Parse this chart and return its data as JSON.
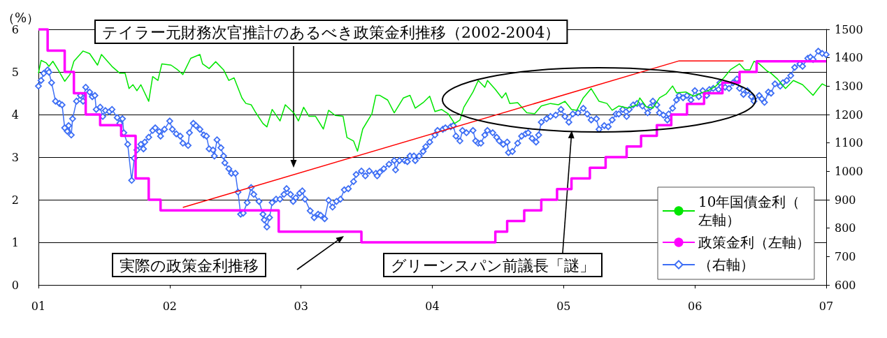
{
  "chart_data": {
    "type": "line",
    "ylabel": "（%）",
    "xlim": [
      2001,
      2007
    ],
    "xticks": [
      {
        "value": 2001,
        "label": "01"
      },
      {
        "value": 2002,
        "label": "02"
      },
      {
        "value": 2003,
        "label": "03"
      },
      {
        "value": 2004,
        "label": "04"
      },
      {
        "value": 2005,
        "label": "05"
      },
      {
        "value": 2006,
        "label": "06"
      },
      {
        "value": 2007,
        "label": "07"
      }
    ],
    "ylim": [
      0,
      6
    ],
    "yticks": [
      0,
      1,
      2,
      3,
      4,
      5,
      6
    ],
    "y2lim": [
      600,
      1500
    ],
    "y2ticks": [
      600,
      700,
      800,
      900,
      1000,
      1100,
      1200,
      1300,
      1400,
      1500
    ],
    "grid": "y",
    "legend": "bottom right",
    "annotations": [
      "テイラー元財務次官推計のあるべき政策金利推移（2002-2004）",
      "実際の政策金利推移",
      "グリーンスパン前議長「謎」"
    ],
    "series": [
      {
        "name": "10年国債金利（左軸）",
        "color": "#00e600",
        "marker": "none",
        "x": [
          2001.0,
          2001.02,
          2001.06,
          2001.08,
          2001.11,
          2001.15,
          2001.2,
          2001.24,
          2001.27,
          2001.34,
          2001.39,
          2001.45,
          2001.48,
          2001.56,
          2001.62,
          2001.66,
          2001.69,
          2001.72,
          2001.75,
          2001.78,
          2001.84,
          2001.87,
          2001.91,
          2001.94,
          2002.01,
          2002.06,
          2002.1,
          2002.16,
          2002.23,
          2002.25,
          2002.3,
          2002.35,
          2002.41,
          2002.45,
          2002.49,
          2002.55,
          2002.58,
          2002.62,
          2002.65,
          2002.71,
          2002.74,
          2002.78,
          2002.84,
          2002.88,
          2002.95,
          2002.98,
          2003.02,
          2003.06,
          2003.11,
          2003.17,
          2003.21,
          2003.26,
          2003.32,
          2003.35,
          2003.4,
          2003.43,
          2003.47,
          2003.54,
          2003.57,
          2003.6,
          2003.66,
          2003.71,
          2003.78,
          2003.83,
          2003.87,
          2003.93,
          2003.98,
          2004.02,
          2004.07,
          2004.12,
          2004.17,
          2004.21,
          2004.24,
          2004.31,
          2004.35,
          2004.4,
          2004.42,
          2004.48,
          2004.53,
          2004.56,
          2004.59,
          2004.65,
          2004.72,
          2004.78,
          2004.83,
          2004.9,
          2004.96,
          2005.01,
          2005.06,
          2005.1,
          2005.15,
          2005.21,
          2005.27,
          2005.33,
          2005.37,
          2005.42,
          2005.49,
          2005.56,
          2005.58,
          2005.63,
          2005.68,
          2005.73,
          2005.78,
          2005.83,
          2005.86,
          2005.93,
          2005.99,
          2006.05,
          2006.1,
          2006.16,
          2006.22,
          2006.27,
          2006.34,
          2006.38,
          2006.42,
          2006.45,
          2006.49,
          2006.55,
          2006.58,
          2006.63,
          2006.69,
          2006.75,
          2006.82,
          2006.9,
          2006.94,
          2006.97,
          2007.0
        ],
        "values": [
          4.97,
          5.27,
          5.21,
          5.13,
          5.25,
          5.05,
          4.78,
          4.94,
          5.25,
          5.49,
          5.43,
          5.16,
          5.41,
          5.13,
          4.97,
          4.97,
          4.61,
          4.7,
          4.56,
          4.7,
          4.31,
          4.89,
          4.8,
          5.19,
          5.16,
          5.05,
          4.94,
          5.32,
          5.41,
          5.19,
          5.08,
          5.24,
          5.05,
          4.8,
          4.86,
          4.39,
          4.26,
          4.23,
          4.07,
          3.79,
          3.71,
          4.12,
          3.85,
          4.23,
          4.02,
          3.85,
          4.17,
          3.96,
          3.96,
          3.66,
          4.1,
          3.98,
          3.96,
          3.46,
          3.38,
          3.14,
          3.66,
          4.02,
          4.45,
          4.45,
          4.34,
          4.04,
          4.39,
          4.45,
          4.15,
          4.28,
          4.43,
          4.07,
          4.12,
          4.02,
          3.79,
          3.87,
          4.17,
          4.53,
          4.8,
          4.64,
          4.8,
          4.59,
          4.39,
          4.51,
          4.26,
          4.28,
          4.04,
          4.02,
          4.2,
          4.26,
          4.23,
          4.31,
          4.12,
          4.1,
          4.39,
          4.61,
          4.31,
          4.26,
          4.1,
          4.2,
          4.15,
          4.23,
          4.39,
          4.18,
          4.15,
          4.39,
          4.48,
          4.67,
          4.51,
          4.53,
          4.43,
          4.51,
          4.56,
          4.67,
          4.86,
          5.05,
          5.19,
          5.05,
          5.05,
          5.25,
          5.19,
          5.02,
          4.97,
          4.83,
          4.61,
          4.8,
          4.7,
          4.45,
          4.61,
          4.72,
          4.67
        ]
      },
      {
        "name": "政策金利（左軸）",
        "type": "step",
        "color": "#ff00ff",
        "marker": "none",
        "x": [
          2001.0,
          2001.07,
          2001.2,
          2001.27,
          2001.36,
          2001.47,
          2001.63,
          2001.74,
          2001.84,
          2001.93,
          2002.83,
          2003.46,
          2004.48,
          2004.57,
          2004.7,
          2004.83,
          2004.95,
          2005.06,
          2005.2,
          2005.32,
          2005.48,
          2005.59,
          2005.71,
          2005.82,
          2005.94,
          2006.07,
          2006.21,
          2006.34,
          2006.47,
          2007.0
        ],
        "values": [
          6.0,
          5.5,
          5.0,
          4.5,
          4.0,
          3.75,
          3.5,
          2.5,
          2.0,
          1.75,
          1.25,
          1.0,
          1.25,
          1.5,
          1.75,
          2.0,
          2.25,
          2.5,
          2.75,
          3.0,
          3.25,
          3.5,
          3.75,
          4.0,
          4.25,
          4.5,
          4.75,
          5.0,
          5.25,
          5.25
        ]
      },
      {
        "name": "（右軸）",
        "axis": "y2",
        "color": "#3d6ef5",
        "marker": "diamond",
        "x": [
          2001.0,
          2001.02,
          2001.04,
          2001.07,
          2001.08,
          2001.1,
          2001.13,
          2001.16,
          2001.18,
          2001.2,
          2001.22,
          2001.23,
          2001.25,
          2001.26,
          2001.29,
          2001.32,
          2001.34,
          2001.36,
          2001.39,
          2001.41,
          2001.43,
          2001.44,
          2001.47,
          2001.49,
          2001.51,
          2001.54,
          2001.56,
          2001.6,
          2001.62,
          2001.64,
          2001.65,
          2001.68,
          2001.71,
          2001.73,
          2001.75,
          2001.78,
          2001.8,
          2001.81,
          2001.84,
          2001.87,
          2001.89,
          2001.92,
          2001.93,
          2001.96,
          2002.0,
          2002.02,
          2002.05,
          2002.08,
          2002.1,
          2002.14,
          2002.15,
          2002.18,
          2002.2,
          2002.23,
          2002.26,
          2002.28,
          2002.3,
          2002.33,
          2002.34,
          2002.36,
          2002.39,
          2002.41,
          2002.42,
          2002.45,
          2002.47,
          2002.5,
          2002.52,
          2002.54,
          2002.56,
          2002.59,
          2002.62,
          2002.64,
          2002.68,
          2002.71,
          2002.72,
          2002.74,
          2002.76,
          2002.78,
          2002.81,
          2002.84,
          2002.87,
          2002.89,
          2002.92,
          2002.94,
          2002.96,
          2002.99,
          2003.01,
          2003.03,
          2003.07,
          2003.1,
          2003.13,
          2003.15,
          2003.18,
          2003.21,
          2003.24,
          2003.27,
          2003.3,
          2003.33,
          2003.36,
          2003.4,
          2003.42,
          2003.46,
          2003.49,
          2003.52,
          2003.57,
          2003.58,
          2003.6,
          2003.63,
          2003.67,
          2003.71,
          2003.72,
          2003.75,
          2003.79,
          2003.81,
          2003.83,
          2003.86,
          2003.87,
          2003.9,
          2003.93,
          2003.95,
          2003.98,
          2004.02,
          2004.04,
          2004.08,
          2004.1,
          2004.14,
          2004.16,
          2004.18,
          2004.21,
          2004.23,
          2004.26,
          2004.31,
          2004.33,
          2004.35,
          2004.37,
          2004.4,
          2004.42,
          2004.46,
          2004.49,
          2004.51,
          2004.54,
          2004.57,
          2004.58,
          2004.61,
          2004.65,
          2004.68,
          2004.71,
          2004.73,
          2004.76,
          2004.79,
          2004.81,
          2004.83,
          2004.87,
          2004.9,
          2004.94,
          2004.98,
          2005.01,
          2005.04,
          2005.07,
          2005.11,
          2005.15,
          2005.18,
          2005.21,
          2005.25,
          2005.27,
          2005.31,
          2005.34,
          2005.37,
          2005.4,
          2005.42,
          2005.45,
          2005.48,
          2005.5,
          2005.53,
          2005.56,
          2005.6,
          2005.64,
          2005.66,
          2005.68,
          2005.71,
          2005.73,
          2005.76,
          2005.79,
          2005.8,
          2005.83,
          2005.86,
          2005.88,
          2005.91,
          2005.94,
          2005.97,
          2006.0,
          2006.03,
          2006.06,
          2006.09,
          2006.11,
          2006.14,
          2006.18,
          2006.19,
          2006.23,
          2006.26,
          2006.29,
          2006.32,
          2006.34,
          2006.37,
          2006.4,
          2006.43,
          2006.45,
          2006.49,
          2006.51,
          2006.53,
          2006.56,
          2006.58,
          2006.61,
          2006.65,
          2006.67,
          2006.7,
          2006.73,
          2006.76,
          2006.8,
          2006.82,
          2006.86,
          2006.88,
          2006.9,
          2006.94,
          2006.97,
          2007.0
        ],
        "values": [
          1300,
          1320,
          1345,
          1357,
          1349,
          1312,
          1247,
          1239,
          1234,
          1153,
          1141,
          1161,
          1128,
          1185,
          1247,
          1267,
          1247,
          1296,
          1279,
          1263,
          1267,
          1218,
          1226,
          1193,
          1214,
          1210,
          1218,
          1189,
          1169,
          1185,
          1136,
          1095,
          968,
          1046,
          1075,
          1095,
          1079,
          1103,
          1120,
          1144,
          1153,
          1140,
          1124,
          1148,
          1177,
          1148,
          1132,
          1124,
          1099,
          1091,
          1136,
          1169,
          1161,
          1148,
          1128,
          1124,
          1079,
          1075,
          1054,
          1111,
          1083,
          1054,
          1030,
          1009,
          993,
          993,
          927,
          849,
          853,
          890,
          943,
          919,
          894,
          849,
          829,
          804,
          837,
          890,
          902,
          902,
          919,
          939,
          919,
          894,
          907,
          923,
          931,
          902,
          861,
          837,
          849,
          845,
          833,
          898,
          874,
          894,
          902,
          935,
          939,
          964,
          989,
          1001,
          984,
          1001,
          993,
          984,
          997,
          1009,
          1025,
          1038,
          1005,
          1038,
          1038,
          1034,
          1054,
          1054,
          1038,
          1054,
          1070,
          1087,
          1103,
          1128,
          1144,
          1148,
          1153,
          1157,
          1161,
          1124,
          1107,
          1144,
          1136,
          1144,
          1107,
          1099,
          1099,
          1128,
          1144,
          1136,
          1120,
          1107,
          1095,
          1103,
          1066,
          1070,
          1099,
          1124,
          1132,
          1136,
          1116,
          1103,
          1128,
          1173,
          1185,
          1193,
          1198,
          1218,
          1193,
          1173,
          1202,
          1206,
          1222,
          1202,
          1181,
          1185,
          1148,
          1161,
          1157,
          1181,
          1202,
          1202,
          1218,
          1193,
          1218,
          1234,
          1239,
          1230,
          1206,
          1226,
          1247,
          1234,
          1206,
          1198,
          1181,
          1202,
          1222,
          1251,
          1267,
          1259,
          1267,
          1251,
          1284,
          1263,
          1284,
          1267,
          1288,
          1292,
          1288,
          1312,
          1296,
          1292,
          1312,
          1325,
          1292,
          1271,
          1284,
          1263,
          1247,
          1267,
          1255,
          1243,
          1279,
          1275,
          1308,
          1300,
          1312,
          1320,
          1337,
          1366,
          1378,
          1370,
          1398,
          1402,
          1394,
          1423,
          1415,
          1411
        ]
      },
      {
        "color": "#ff0000",
        "marker": "none",
        "x": [
          2002.1,
          2005.88,
          2006.37
        ],
        "values": [
          1.82,
          5.26,
          5.26
        ]
      }
    ]
  }
}
